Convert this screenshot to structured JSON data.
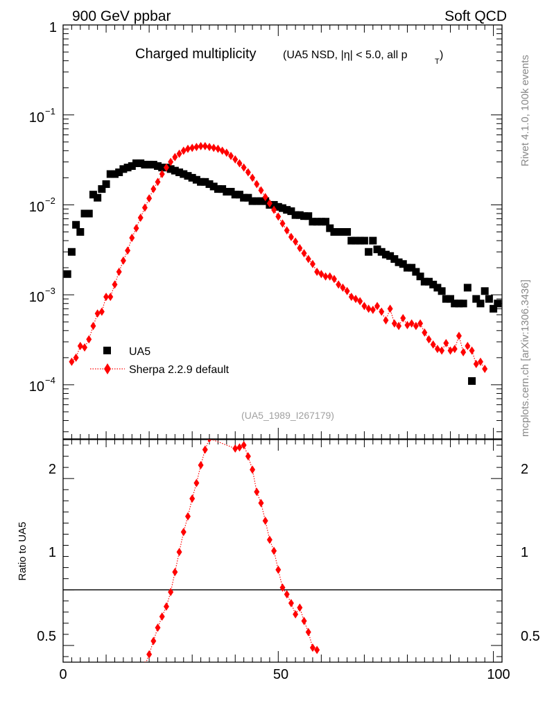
{
  "header": {
    "left": "900 GeV ppbar",
    "right": "Soft QCD"
  },
  "side_labels": {
    "rivet": "Rivet 4.1.0,  100k events",
    "mcplots": "mcplots.cern.ch [arXiv:1306.3436]"
  },
  "chart_data": [
    {
      "type": "scatter",
      "title": "Charged multiplicity",
      "subtitle": "(UA5 NSD, |η| < 5.0, all p",
      "subtitle_subscript": "T",
      "subtitle_close": ")",
      "watermark": "(UA5_1989_I267179)",
      "xlim": [
        0,
        102
      ],
      "ylim": [
        2.5e-05,
        1
      ],
      "yscale": "log",
      "y_ticks": [
        {
          "base": "1",
          "exp": ""
        },
        {
          "base": "10",
          "exp": "−1"
        },
        {
          "base": "10",
          "exp": "−2"
        },
        {
          "base": "10",
          "exp": "−3"
        },
        {
          "base": "10",
          "exp": "−4"
        }
      ],
      "legend_position": "bottom-left",
      "series": [
        {
          "name": "UA5",
          "color": "#000000",
          "marker": "square",
          "points": [
            [
              1,
              0.0017
            ],
            [
              2,
              0.003
            ],
            [
              3,
              0.006
            ],
            [
              4,
              0.005
            ],
            [
              5,
              0.008
            ],
            [
              6,
              0.008
            ],
            [
              7,
              0.013
            ],
            [
              8,
              0.012
            ],
            [
              9,
              0.015
            ],
            [
              10,
              0.017
            ],
            [
              11,
              0.022
            ],
            [
              12,
              0.022
            ],
            [
              13,
              0.023
            ],
            [
              14,
              0.025
            ],
            [
              15,
              0.026
            ],
            [
              16,
              0.027
            ],
            [
              17,
              0.029
            ],
            [
              18,
              0.029
            ],
            [
              19,
              0.028
            ],
            [
              20,
              0.028
            ],
            [
              21,
              0.028
            ],
            [
              22,
              0.027
            ],
            [
              23,
              0.026
            ],
            [
              24,
              0.026
            ],
            [
              25,
              0.025
            ],
            [
              26,
              0.024
            ],
            [
              27,
              0.023
            ],
            [
              28,
              0.022
            ],
            [
              29,
              0.021
            ],
            [
              30,
              0.02
            ],
            [
              31,
              0.019
            ],
            [
              32,
              0.018
            ],
            [
              33,
              0.018
            ],
            [
              34,
              0.017
            ],
            [
              35,
              0.016
            ],
            [
              36,
              0.015
            ],
            [
              37,
              0.015
            ],
            [
              38,
              0.014
            ],
            [
              39,
              0.014
            ],
            [
              40,
              0.013
            ],
            [
              41,
              0.013
            ],
            [
              42,
              0.012
            ],
            [
              43,
              0.012
            ],
            [
              44,
              0.011
            ],
            [
              45,
              0.011
            ],
            [
              46,
              0.011
            ],
            [
              47,
              0.011
            ],
            [
              48,
              0.01
            ],
            [
              49,
              0.01
            ],
            [
              50,
              0.0095
            ],
            [
              51,
              0.0092
            ],
            [
              52,
              0.0088
            ],
            [
              53,
              0.0085
            ],
            [
              54,
              0.0077
            ],
            [
              55,
              0.0077
            ],
            [
              56,
              0.0075
            ],
            [
              57,
              0.0075
            ],
            [
              58,
              0.0065
            ],
            [
              59,
              0.0065
            ],
            [
              60,
              0.0065
            ],
            [
              61,
              0.0065
            ],
            [
              62,
              0.0055
            ],
            [
              63,
              0.005
            ],
            [
              64,
              0.005
            ],
            [
              65,
              0.005
            ],
            [
              66,
              0.005
            ],
            [
              67,
              0.004
            ],
            [
              68,
              0.004
            ],
            [
              69,
              0.004
            ],
            [
              70,
              0.004
            ],
            [
              71,
              0.003
            ],
            [
              72,
              0.004
            ],
            [
              73,
              0.0032
            ],
            [
              74,
              0.003
            ],
            [
              75,
              0.0028
            ],
            [
              76,
              0.0027
            ],
            [
              77,
              0.0025
            ],
            [
              78,
              0.0023
            ],
            [
              79,
              0.0022
            ],
            [
              80,
              0.002
            ],
            [
              81,
              0.002
            ],
            [
              82,
              0.0018
            ],
            [
              83,
              0.0016
            ],
            [
              84,
              0.0014
            ],
            [
              85,
              0.0014
            ],
            [
              86,
              0.0013
            ],
            [
              87,
              0.0012
            ],
            [
              88,
              0.0011
            ],
            [
              89,
              0.0009
            ],
            [
              90,
              0.0009
            ],
            [
              91,
              0.0008
            ],
            [
              92,
              0.0008
            ],
            [
              93,
              0.0008
            ],
            [
              94,
              0.0012
            ],
            [
              95,
              0.00011
            ],
            [
              96,
              0.0009
            ],
            [
              97,
              0.0008
            ],
            [
              98,
              0.0011
            ],
            [
              99,
              0.0009
            ],
            [
              100,
              0.0007
            ],
            [
              101,
              0.0008
            ]
          ]
        },
        {
          "name": "Sherpa 2.2.9 default",
          "color": "#ff0000",
          "marker": "diamond",
          "line": "dotted",
          "points": [
            [
              2,
              0.00018
            ],
            [
              3,
              0.0002
            ],
            [
              4,
              0.00027
            ],
            [
              5,
              0.00026
            ],
            [
              6,
              0.00032
            ],
            [
              7,
              0.00045
            ],
            [
              8,
              0.00062
            ],
            [
              9,
              0.00065
            ],
            [
              10,
              0.00095
            ],
            [
              11,
              0.00095
            ],
            [
              12,
              0.0013
            ],
            [
              13,
              0.0018
            ],
            [
              14,
              0.0024
            ],
            [
              15,
              0.0031
            ],
            [
              16,
              0.0043
            ],
            [
              17,
              0.0055
            ],
            [
              18,
              0.0072
            ],
            [
              19,
              0.0093
            ],
            [
              20,
              0.0118
            ],
            [
              21,
              0.015
            ],
            [
              22,
              0.018
            ],
            [
              23,
              0.022
            ],
            [
              24,
              0.026
            ],
            [
              25,
              0.03
            ],
            [
              26,
              0.034
            ],
            [
              27,
              0.037
            ],
            [
              28,
              0.04
            ],
            [
              29,
              0.042
            ],
            [
              30,
              0.043
            ],
            [
              31,
              0.044
            ],
            [
              32,
              0.045
            ],
            [
              33,
              0.045
            ],
            [
              34,
              0.044
            ],
            [
              35,
              0.043
            ],
            [
              36,
              0.042
            ],
            [
              37,
              0.04
            ],
            [
              38,
              0.038
            ],
            [
              39,
              0.035
            ],
            [
              40,
              0.032
            ],
            [
              41,
              0.029
            ],
            [
              42,
              0.026
            ],
            [
              43,
              0.023
            ],
            [
              44,
              0.02
            ],
            [
              45,
              0.017
            ],
            [
              46,
              0.0145
            ],
            [
              47,
              0.0122
            ],
            [
              48,
              0.0104
            ],
            [
              49,
              0.0088
            ],
            [
              50,
              0.0074
            ],
            [
              51,
              0.0062
            ],
            [
              52,
              0.0052
            ],
            [
              53,
              0.0044
            ],
            [
              54,
              0.0039
            ],
            [
              55,
              0.0033
            ],
            [
              56,
              0.0029
            ],
            [
              57,
              0.0025
            ],
            [
              58,
              0.0022
            ],
            [
              59,
              0.0018
            ],
            [
              60,
              0.0017
            ],
            [
              61,
              0.0016
            ],
            [
              62,
              0.0016
            ],
            [
              63,
              0.0015
            ],
            [
              64,
              0.0013
            ],
            [
              65,
              0.0012
            ],
            [
              66,
              0.0011
            ],
            [
              67,
              0.00095
            ],
            [
              68,
              0.0009
            ],
            [
              69,
              0.00085
            ],
            [
              70,
              0.00075
            ],
            [
              71,
              0.0007
            ],
            [
              72,
              0.00068
            ],
            [
              73,
              0.00075
            ],
            [
              74,
              0.00065
            ],
            [
              75,
              0.00052
            ],
            [
              76,
              0.0007
            ],
            [
              77,
              0.00048
            ],
            [
              78,
              0.00045
            ],
            [
              79,
              0.00055
            ],
            [
              80,
              0.00046
            ],
            [
              81,
              0.00048
            ],
            [
              82,
              0.00045
            ],
            [
              83,
              0.00048
            ],
            [
              84,
              0.00038
            ],
            [
              85,
              0.00032
            ],
            [
              86,
              0.00028
            ],
            [
              87,
              0.00025
            ],
            [
              88,
              0.00024
            ],
            [
              89,
              0.00029
            ],
            [
              90,
              0.00024
            ],
            [
              91,
              0.00025
            ],
            [
              92,
              0.00035
            ],
            [
              93,
              0.00023
            ],
            [
              94,
              0.00027
            ],
            [
              95,
              0.00024
            ],
            [
              96,
              0.00017
            ],
            [
              97,
              0.00018
            ],
            [
              98,
              0.00015
            ]
          ]
        }
      ]
    },
    {
      "type": "scatter",
      "title": "",
      "ylabel": "Ratio to UA5",
      "xlabel": "",
      "xlim": [
        0,
        102
      ],
      "ylim": [
        0.35,
        2.35
      ],
      "x_ticks": [
        0,
        50,
        100
      ],
      "y_ticks": [
        0.5,
        1,
        2
      ],
      "reference_line": 1,
      "series": [
        {
          "name": "Sherpa 2.2.9 default / UA5",
          "color": "#ff0000",
          "marker": "diamond",
          "line": "dotted",
          "points": [
            [
              19,
              0.32
            ],
            [
              20,
              0.42
            ],
            [
              21,
              0.54
            ],
            [
              22,
              0.66
            ],
            [
              23,
              0.76
            ],
            [
              24,
              0.85
            ],
            [
              25,
              0.98
            ],
            [
              26,
              1.16
            ],
            [
              27,
              1.34
            ],
            [
              28,
              1.52
            ],
            [
              29,
              1.66
            ],
            [
              30,
              1.82
            ],
            [
              31,
              1.96
            ],
            [
              32,
              2.12
            ],
            [
              33,
              2.26
            ],
            [
              34,
              2.36
            ],
            [
              40,
              2.27
            ],
            [
              41,
              2.28
            ],
            [
              42,
              2.3
            ],
            [
              43,
              2.2
            ],
            [
              44,
              2.08
            ],
            [
              45,
              1.88
            ],
            [
              46,
              1.78
            ],
            [
              47,
              1.62
            ],
            [
              48,
              1.45
            ],
            [
              49,
              1.35
            ],
            [
              50,
              1.18
            ],
            [
              51,
              1.02
            ],
            [
              52,
              0.96
            ],
            [
              53,
              0.88
            ],
            [
              54,
              0.78
            ],
            [
              55,
              0.84
            ],
            [
              56,
              0.72
            ],
            [
              57,
              0.62
            ],
            [
              58,
              0.48
            ],
            [
              59,
              0.46
            ]
          ]
        }
      ]
    }
  ]
}
